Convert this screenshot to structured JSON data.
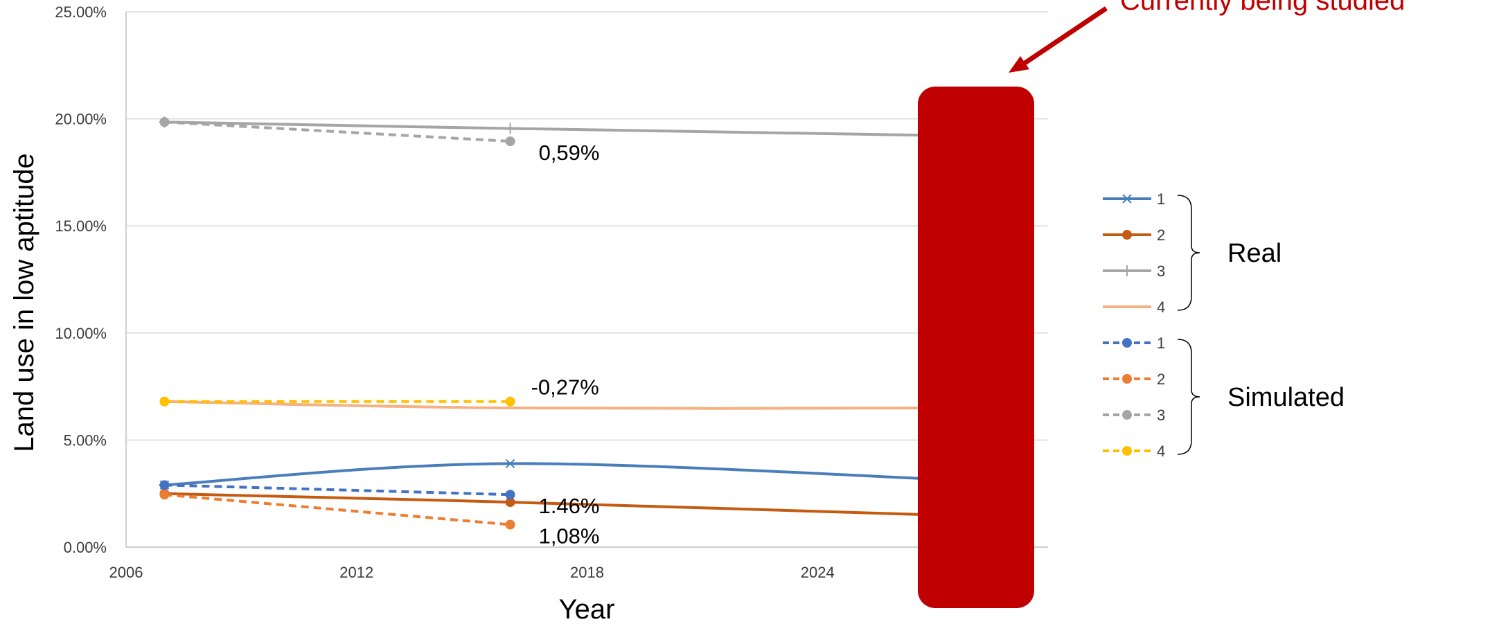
{
  "chart_data": {
    "type": "line",
    "xlabel": "Year",
    "ylabel": "Land use in low aptitude",
    "xlim": [
      2006,
      2030
    ],
    "ylim": [
      0,
      25
    ],
    "x_ticks": [
      2006,
      2012,
      2018,
      2024
    ],
    "y_ticks": [
      0,
      5,
      10,
      15,
      20,
      25
    ],
    "y_tick_labels": [
      "0.00%",
      "5.00%",
      "10.00%",
      "15.00%",
      "20.00%",
      "25.00%"
    ],
    "grid": "horizontal",
    "legend_position": "right",
    "series": [
      {
        "group": "Real",
        "legend_label": "1",
        "color": "#4a7ebb",
        "dash": false,
        "marker": "asterisk",
        "x": [
          2007,
          2016,
          2028
        ],
        "y": [
          2.9,
          3.9,
          3.1
        ]
      },
      {
        "group": "Real",
        "legend_label": "2",
        "color": "#c55a11",
        "dash": false,
        "marker": "circle",
        "x": [
          2007,
          2016,
          2028
        ],
        "y": [
          2.5,
          2.1,
          1.45
        ]
      },
      {
        "group": "Real",
        "legend_label": "3",
        "color": "#a5a5a5",
        "dash": false,
        "marker": "plus",
        "x": [
          2007,
          2016,
          2028
        ],
        "y": [
          19.85,
          19.55,
          19.2
        ]
      },
      {
        "group": "Real",
        "legend_label": "4",
        "color": "#f4b183",
        "dash": false,
        "marker": "none",
        "x": [
          2007,
          2016,
          2028
        ],
        "y": [
          6.8,
          6.5,
          6.5
        ]
      },
      {
        "group": "Simulated",
        "legend_label": "1",
        "color": "#4472c4",
        "dash": true,
        "marker": "circle",
        "x": [
          2007,
          2016
        ],
        "y": [
          2.9,
          2.45
        ]
      },
      {
        "group": "Simulated",
        "legend_label": "2",
        "color": "#ed7d31",
        "dash": true,
        "marker": "circle",
        "x": [
          2007,
          2016
        ],
        "y": [
          2.45,
          1.05
        ]
      },
      {
        "group": "Simulated",
        "legend_label": "3",
        "color": "#a5a5a5",
        "dash": true,
        "marker": "circle",
        "x": [
          2007,
          2016
        ],
        "y": [
          19.85,
          18.95
        ]
      },
      {
        "group": "Simulated",
        "legend_label": "4",
        "color": "#ffc000",
        "dash": true,
        "marker": "circle",
        "x": [
          2007,
          2016
        ],
        "y": [
          6.8,
          6.8
        ]
      }
    ],
    "annotations": [
      {
        "text": "0,59%",
        "x": 2016,
        "y": 18.95
      },
      {
        "text": "-0,27%",
        "x": 2016,
        "y": 6.8
      },
      {
        "text": "1.46%",
        "x": 2016,
        "y": 2.45
      },
      {
        "text": "1,08%",
        "x": 2016,
        "y": 1.05
      }
    ],
    "legend_groups": [
      "Real",
      "Simulated"
    ],
    "overlay": {
      "text": "Currently being studied",
      "color": "#c00000"
    }
  }
}
